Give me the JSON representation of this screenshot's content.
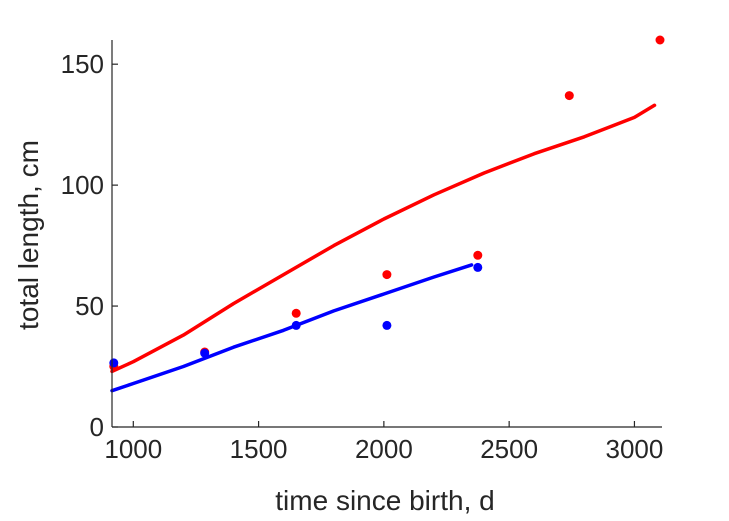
{
  "chart_data": {
    "type": "scatter",
    "title": "",
    "xlabel": "time since birth, d",
    "ylabel": "total length, cm",
    "xlim": [
      915,
      3110
    ],
    "ylim": [
      0,
      160
    ],
    "xticks": [
      1000,
      1500,
      2000,
      2500,
      3000
    ],
    "yticks": [
      0,
      50,
      100,
      150
    ],
    "grid": false,
    "legend": "none",
    "series": [
      {
        "kind": "points",
        "color": "#ff0000",
        "x": [
          922,
          1285,
          1650,
          2012,
          2375,
          2740,
          3102
        ],
        "y": [
          25,
          31,
          47,
          63,
          71,
          137,
          160
        ]
      },
      {
        "kind": "points",
        "color": "#0000ff",
        "x": [
          922,
          1285,
          1650,
          2012,
          2375
        ],
        "y": [
          26.5,
          30.5,
          42,
          42,
          66
        ]
      },
      {
        "kind": "curve",
        "color": "#ff0000",
        "x": [
          915,
          1000,
          1200,
          1400,
          1600,
          1800,
          2000,
          2200,
          2400,
          2600,
          2800,
          3000,
          3080
        ],
        "y": [
          23,
          27,
          38,
          51,
          63,
          75,
          86,
          96,
          105,
          113,
          120,
          128,
          133
        ]
      },
      {
        "kind": "curve",
        "color": "#0000ff",
        "x": [
          915,
          1000,
          1200,
          1400,
          1600,
          1800,
          2000,
          2200,
          2350
        ],
        "y": [
          15,
          18,
          25,
          33,
          40,
          48,
          55,
          62,
          67
        ]
      }
    ]
  }
}
